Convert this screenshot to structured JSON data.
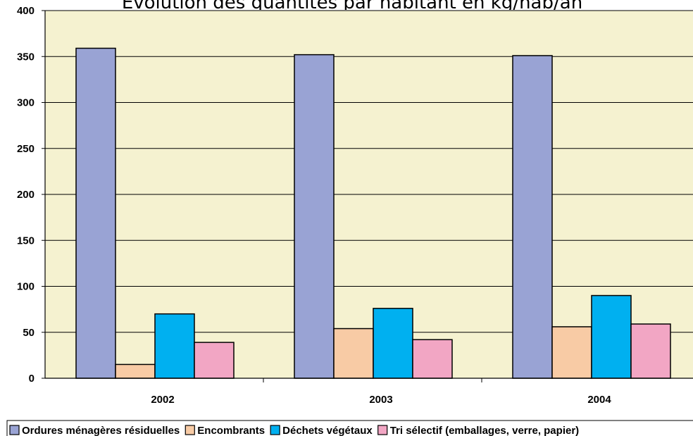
{
  "chart_data": {
    "type": "bar",
    "title": "Évolution des quantités par habitant en kg/hab/an",
    "categories": [
      "2002",
      "2003",
      "2004"
    ],
    "series": [
      {
        "name": "Ordures ménagères résiduelles",
        "color": "#99A3D4",
        "values": [
          359,
          352,
          351
        ]
      },
      {
        "name": "Encombrants",
        "color": "#F8CBA5",
        "values": [
          15,
          54,
          56
        ]
      },
      {
        "name": "Déchets végétaux",
        "color": "#00B0F0",
        "values": [
          70,
          76,
          90
        ]
      },
      {
        "name": "Tri sélectif (emballages, verre, papier)",
        "color": "#F2A6C4",
        "values": [
          39,
          42,
          59
        ]
      }
    ],
    "xlabel": "",
    "ylabel": "",
    "ylim": [
      0,
      400
    ],
    "yticks": [
      0,
      50,
      100,
      150,
      200,
      250,
      300,
      350,
      400
    ],
    "grid": true,
    "legend": "bottom",
    "plot_background": "#F5F2D0"
  }
}
